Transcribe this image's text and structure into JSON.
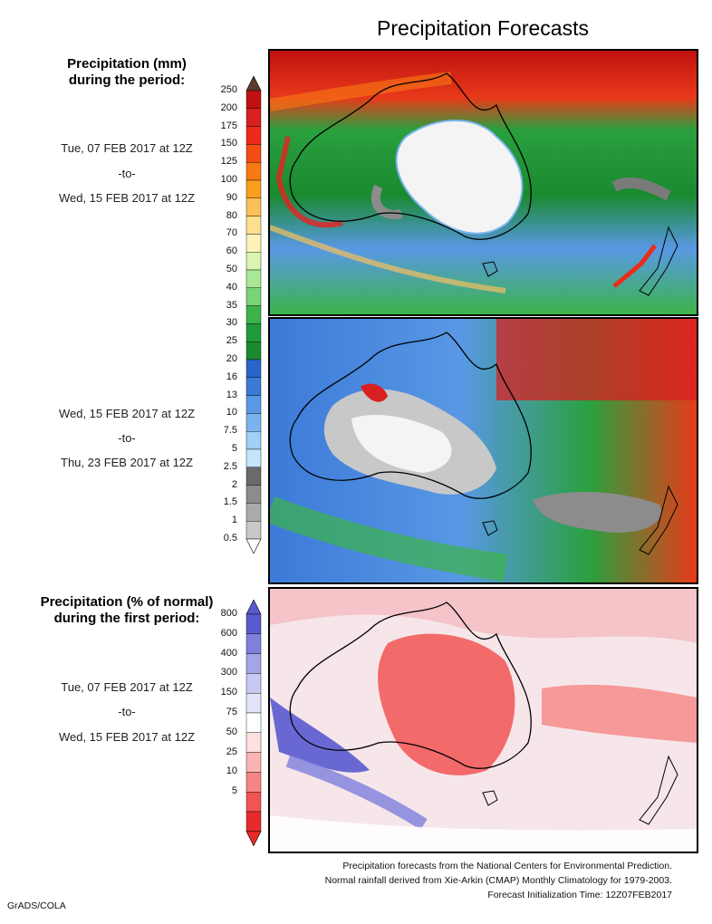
{
  "title": "Precipitation Forecasts",
  "legend_mm": {
    "heading_line1": "Precipitation (mm)",
    "heading_line2": "during the period:",
    "levels": [
      "250",
      "200",
      "175",
      "150",
      "125",
      "100",
      "90",
      "80",
      "70",
      "60",
      "50",
      "40",
      "35",
      "30",
      "25",
      "20",
      "16",
      "13",
      "10",
      "7.5",
      "5",
      "2.5",
      "2",
      "1.5",
      "1",
      "0.5"
    ],
    "colors": [
      "#c01010",
      "#d82020",
      "#ee2a1a",
      "#f44c14",
      "#f87a14",
      "#fa9e1e",
      "#fcc05a",
      "#fde08e",
      "#fef2b8",
      "#d9f5b0",
      "#a8e896",
      "#78d474",
      "#3cb44a",
      "#1e9a3a",
      "#1a8a30",
      "#2a64c8",
      "#3c7ad8",
      "#5898e4",
      "#7ab4ee",
      "#a0d0f6",
      "#c4e6fc",
      "#6a6a6a",
      "#8c8c8c",
      "#aaaaaa",
      "#c8c8c8"
    ],
    "top_cap_color": "#5a3c2a"
  },
  "period1": {
    "start": "Tue, 07 FEB 2017 at 12Z",
    "sep": "-to-",
    "end": "Wed, 15 FEB 2017 at 12Z"
  },
  "period2": {
    "start": "Wed, 15 FEB 2017 at 12Z",
    "sep": "-to-",
    "end": "Thu, 23 FEB 2017 at 12Z"
  },
  "legend_pct": {
    "heading_line1": "Precipitation (% of normal)",
    "heading_line2": "during the first period:",
    "levels": [
      "800",
      "600",
      "400",
      "300",
      "150",
      "75",
      "50",
      "25",
      "10",
      "5"
    ],
    "colors": [
      "#5a5ad0",
      "#8080dc",
      "#a4a4e8",
      "#c8c8f2",
      "#e4e4f8",
      "#ffffff",
      "#fde0e0",
      "#fbb4b4",
      "#f78484",
      "#f25454",
      "#ea2a2a"
    ]
  },
  "footer": {
    "line1": "Precipitation forecasts from the National Centers for Environmental Prediction.",
    "line2": "Normal rainfall derived from Xie-Arkin (CMAP) Monthly Climatology for 1979-2003.",
    "line3": "Forecast Initialization Time: 12Z07FEB2017"
  },
  "credit": "GrADS/COLA"
}
